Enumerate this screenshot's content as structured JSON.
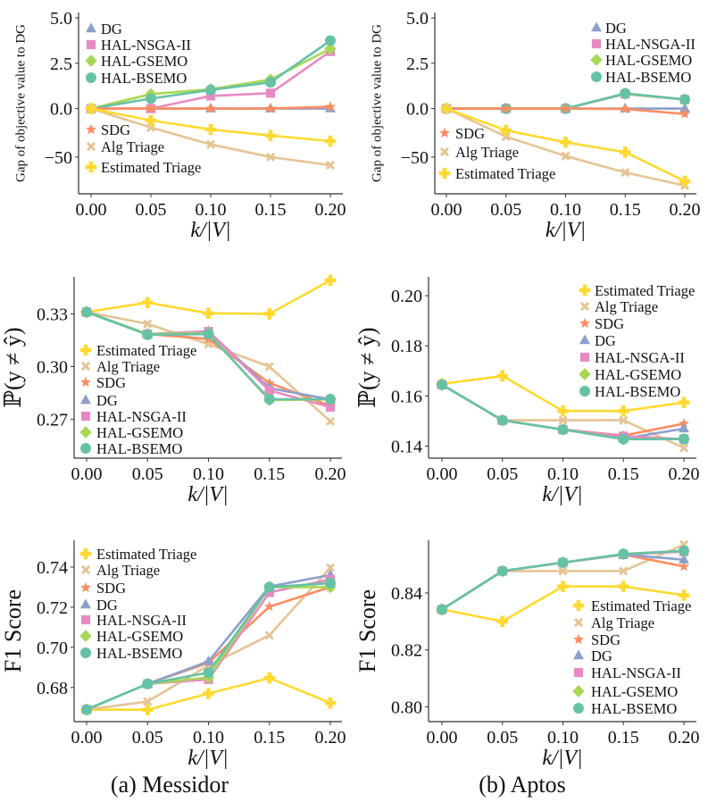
{
  "captions": [
    "(a) Messidor",
    "(b) Aptos"
  ],
  "colors": {
    "DG": "#8da0cb",
    "HAL-NSGA-II": "#e78ac3",
    "HAL-GSEMO": "#a6d854",
    "HAL-BSEMO": "#66c2a5",
    "SDG": "#fc8d62",
    "Alg Triage": "#e5c494",
    "Estimated Triage": "#ffd92f"
  },
  "markers": {
    "DG": "triangle",
    "HAL-NSGA-II": "square",
    "HAL-GSEMO": "diamond",
    "HAL-BSEMO": "circle",
    "SDG": "star",
    "Alg Triage": "x",
    "Estimated Triage": "plus"
  },
  "chart_data": [
    {
      "type": "line",
      "dataset": "Messidor",
      "ylabel": "Gap of objective value to DG",
      "xlabel": "k/|V|",
      "yscale": "symlog",
      "ylim": [
        -88,
        5.3
      ],
      "yticks": [
        5.0,
        2.5,
        0.0,
        -50
      ],
      "ytick_labels": [
        "5.0",
        "2.5",
        "0.0",
        "−50"
      ],
      "x": [
        0.0,
        0.05,
        0.1,
        0.15,
        0.2
      ],
      "xtick_labels": [
        "0.00",
        "0.05",
        "0.10",
        "0.15",
        "0.20"
      ],
      "legend": "upper-left (split in two groups)",
      "series": [
        {
          "name": "DG",
          "values": [
            0,
            0,
            0,
            0,
            0
          ]
        },
        {
          "name": "HAL-NSGA-II",
          "values": [
            0,
            0,
            0.7,
            0.85,
            3.15
          ]
        },
        {
          "name": "HAL-GSEMO",
          "values": [
            0,
            0.8,
            1.07,
            1.6,
            3.3
          ]
        },
        {
          "name": "HAL-BSEMO",
          "values": [
            0,
            0.55,
            1.03,
            1.45,
            3.75
          ]
        },
        {
          "name": "SDG",
          "values": [
            0,
            0,
            0,
            0,
            0.1
          ]
        },
        {
          "name": "Alg Triage",
          "values": [
            0,
            -19.6,
            -37,
            -50,
            -58.5
          ]
        },
        {
          "name": "Estimated Triage",
          "values": [
            0,
            -12.3,
            -21.6,
            -27.8,
            -33.6
          ]
        }
      ]
    },
    {
      "type": "line",
      "dataset": "Aptos",
      "ylabel": "Gap of objective value to DG",
      "xlabel": "k/|V|",
      "yscale": "symlog",
      "ylim": [
        -88,
        5.3
      ],
      "yticks": [
        5.0,
        2.5,
        0.0,
        -50
      ],
      "ytick_labels": [
        "5.0",
        "2.5",
        "0.0",
        "−50"
      ],
      "x": [
        0.0,
        0.05,
        0.1,
        0.15,
        0.2
      ],
      "xtick_labels": [
        "0.00",
        "0.05",
        "0.10",
        "0.15",
        "0.20"
      ],
      "legend": "upper-right and left (split in two groups)",
      "series": [
        {
          "name": "DG",
          "values": [
            0,
            0,
            0,
            0,
            0
          ]
        },
        {
          "name": "HAL-NSGA-II",
          "values": [
            0,
            0,
            0,
            0.8,
            0.5
          ]
        },
        {
          "name": "HAL-GSEMO",
          "values": [
            0,
            0,
            0,
            0.82,
            0.5
          ]
        },
        {
          "name": "HAL-BSEMO",
          "values": [
            0,
            0,
            0,
            0.84,
            0.5
          ]
        },
        {
          "name": "SDG",
          "values": [
            0,
            0,
            0,
            -0.5,
            -5.5
          ]
        },
        {
          "name": "Alg Triage",
          "values": [
            0,
            -29,
            -49,
            -66,
            -79.5
          ]
        },
        {
          "name": "Estimated Triage",
          "values": [
            0,
            -22.5,
            -34.8,
            -45,
            -75
          ]
        }
      ]
    },
    {
      "type": "line",
      "dataset": "Messidor",
      "ylabel": "ℙ(y ≠ ŷ)",
      "xlabel": "k/|V|",
      "ylim": [
        0.248,
        0.351
      ],
      "yticks": [
        0.33,
        0.3,
        0.27
      ],
      "ytick_labels": [
        "0.33",
        "0.30",
        "0.27"
      ],
      "x": [
        0.0,
        0.05,
        0.1,
        0.15,
        0.2
      ],
      "xtick_labels": [
        "0.00",
        "0.05",
        "0.10",
        "0.15",
        "0.20"
      ],
      "legend": "lower-left",
      "series": [
        {
          "name": "Estimated Triage",
          "values": [
            0.331,
            0.3364,
            0.3303,
            0.33,
            0.349
          ]
        },
        {
          "name": "Alg Triage",
          "values": [
            0.331,
            0.3243,
            0.3128,
            0.3,
            0.2689
          ]
        },
        {
          "name": "SDG",
          "values": [
            0.331,
            0.3185,
            0.3157,
            0.2907,
            0.2777
          ]
        },
        {
          "name": "DG",
          "values": [
            0.331,
            0.3185,
            0.32,
            0.2878,
            0.2814
          ]
        },
        {
          "name": "HAL-NSGA-II",
          "values": [
            0.331,
            0.3185,
            0.32,
            0.2864,
            0.277
          ]
        },
        {
          "name": "HAL-GSEMO",
          "values": [
            0.331,
            0.3185,
            0.319,
            0.281,
            0.2814
          ]
        },
        {
          "name": "HAL-BSEMO",
          "values": [
            0.331,
            0.3181,
            0.3185,
            0.2815,
            0.2815
          ]
        }
      ]
    },
    {
      "type": "line",
      "dataset": "Aptos",
      "ylabel": "ℙ(y ≠ ŷ)",
      "xlabel": "k/|V|",
      "ylim": [
        0.1352,
        0.2075
      ],
      "yticks": [
        0.2,
        0.18,
        0.16,
        0.14
      ],
      "ytick_labels": [
        "0.20",
        "0.18",
        "0.16",
        "0.14"
      ],
      "x": [
        0.0,
        0.05,
        0.1,
        0.15,
        0.2
      ],
      "xtick_labels": [
        "0.00",
        "0.05",
        "0.10",
        "0.15",
        "0.20"
      ],
      "legend": "upper-right",
      "series": [
        {
          "name": "Estimated Triage",
          "values": [
            0.1648,
            0.168,
            0.154,
            0.154,
            0.1574
          ]
        },
        {
          "name": "Alg Triage",
          "values": [
            0.1645,
            0.1503,
            0.1503,
            0.1503,
            0.1393
          ]
        },
        {
          "name": "SDG",
          "values": [
            0.1645,
            0.1503,
            0.1466,
            0.1442,
            0.149
          ]
        },
        {
          "name": "DG",
          "values": [
            0.1645,
            0.1503,
            0.1466,
            0.143,
            0.147
          ]
        },
        {
          "name": "HAL-NSGA-II",
          "values": [
            0.1645,
            0.1503,
            0.1466,
            0.144,
            0.1428
          ]
        },
        {
          "name": "HAL-GSEMO",
          "values": [
            0.1645,
            0.1503,
            0.1466,
            0.1428,
            0.1428
          ]
        },
        {
          "name": "HAL-BSEMO",
          "values": [
            0.1645,
            0.1503,
            0.1466,
            0.1428,
            0.1428
          ]
        }
      ]
    },
    {
      "type": "line",
      "dataset": "Messidor",
      "ylabel": "F1 Score",
      "xlabel": "k/|V|",
      "ylim": [
        0.663,
        0.7533
      ],
      "yticks": [
        0.74,
        0.72,
        0.7,
        0.68
      ],
      "ytick_labels": [
        "0.74",
        "0.72",
        "0.70",
        "0.68"
      ],
      "x": [
        0.0,
        0.05,
        0.1,
        0.15,
        0.2
      ],
      "xtick_labels": [
        "0.00",
        "0.05",
        "0.10",
        "0.15",
        "0.20"
      ],
      "legend": "upper-left",
      "series": [
        {
          "name": "Estimated Triage",
          "values": [
            0.6689,
            0.6689,
            0.677,
            0.6847,
            0.6723
          ]
        },
        {
          "name": "Alg Triage",
          "values": [
            0.669,
            0.673,
            0.691,
            0.706,
            0.7397
          ]
        },
        {
          "name": "SDG",
          "values": [
            0.669,
            0.6818,
            0.6923,
            0.7203,
            0.73
          ]
        },
        {
          "name": "DG",
          "values": [
            0.669,
            0.6818,
            0.693,
            0.7303,
            0.736
          ]
        },
        {
          "name": "HAL-NSGA-II",
          "values": [
            0.669,
            0.6818,
            0.684,
            0.7273,
            0.7338
          ]
        },
        {
          "name": "HAL-GSEMO",
          "values": [
            0.669,
            0.6818,
            0.685,
            0.73,
            0.73
          ]
        },
        {
          "name": "HAL-BSEMO",
          "values": [
            0.669,
            0.6818,
            0.6874,
            0.73,
            0.732
          ]
        }
      ]
    },
    {
      "type": "line",
      "dataset": "Aptos",
      "ylabel": "F1 Score",
      "xlabel": "k/|V|",
      "ylim": [
        0.7948,
        0.8585
      ],
      "yticks": [
        0.84,
        0.82,
        0.8
      ],
      "ytick_labels": [
        "0.84",
        "0.82",
        "0.80"
      ],
      "x": [
        0.0,
        0.05,
        0.1,
        0.15,
        0.2
      ],
      "xtick_labels": [
        "0.00",
        "0.05",
        "0.10",
        "0.15",
        "0.20"
      ],
      "legend": "lower-right",
      "series": [
        {
          "name": "Estimated Triage",
          "values": [
            0.8342,
            0.83,
            0.8423,
            0.8423,
            0.8392
          ]
        },
        {
          "name": "Alg Triage",
          "values": [
            0.8342,
            0.8477,
            0.8477,
            0.8477,
            0.857
          ]
        },
        {
          "name": "SDG",
          "values": [
            0.8342,
            0.8477,
            0.8507,
            0.8535,
            0.8493
          ]
        },
        {
          "name": "DG",
          "values": [
            0.8342,
            0.8477,
            0.8507,
            0.8535,
            0.8517
          ]
        },
        {
          "name": "HAL-NSGA-II",
          "values": [
            0.8342,
            0.8477,
            0.8507,
            0.8535,
            0.8545
          ]
        },
        {
          "name": "HAL-GSEMO",
          "values": [
            0.8342,
            0.8477,
            0.8507,
            0.8537,
            0.8548
          ]
        },
        {
          "name": "HAL-BSEMO",
          "values": [
            0.8342,
            0.8477,
            0.8507,
            0.8537,
            0.8548
          ]
        }
      ]
    }
  ]
}
